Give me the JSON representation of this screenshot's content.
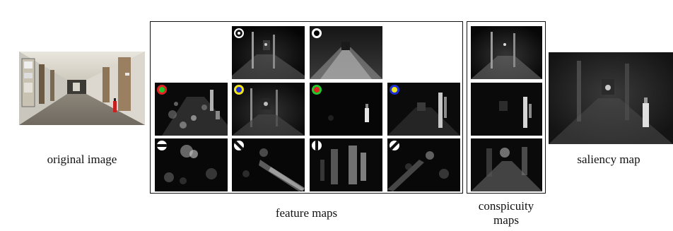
{
  "captions": {
    "original": "original image",
    "feature_maps": "feature maps",
    "conspicuity_line1": "conspicuity",
    "conspicuity_line2": "maps",
    "saliency": "saliency map"
  },
  "colors": {
    "red": "#e32222",
    "green": "#24c62e",
    "yellow": "#f2e51a",
    "blue": "#1f2fd6",
    "dark_center": "#222222"
  },
  "feature_map_badges": [
    {
      "row": 1,
      "col": 2,
      "type": "intensity-on-off",
      "icon": "black-center-white-ring-icon"
    },
    {
      "row": 1,
      "col": 3,
      "type": "intensity-off-on",
      "icon": "white-ring-icon"
    },
    {
      "row": 2,
      "col": 1,
      "type": "color-red-green",
      "icon": "red-ring-green-center-icon"
    },
    {
      "row": 2,
      "col": 2,
      "type": "color-yellow-blue",
      "icon": "yellow-ring-blue-center-icon"
    },
    {
      "row": 2,
      "col": 3,
      "type": "color-green-red",
      "icon": "green-ring-red-center-icon"
    },
    {
      "row": 2,
      "col": 4,
      "type": "color-blue-yellow",
      "icon": "blue-ring-yellow-center-icon"
    },
    {
      "row": 3,
      "col": 1,
      "type": "orientation-0",
      "icon": "horizontal-bar-icon"
    },
    {
      "row": 3,
      "col": 2,
      "type": "orientation-45",
      "icon": "diagonal-bar-left-icon"
    },
    {
      "row": 3,
      "col": 3,
      "type": "orientation-90",
      "icon": "vertical-bar-icon"
    },
    {
      "row": 3,
      "col": 4,
      "type": "orientation-135",
      "icon": "diagonal-bar-right-icon"
    }
  ]
}
